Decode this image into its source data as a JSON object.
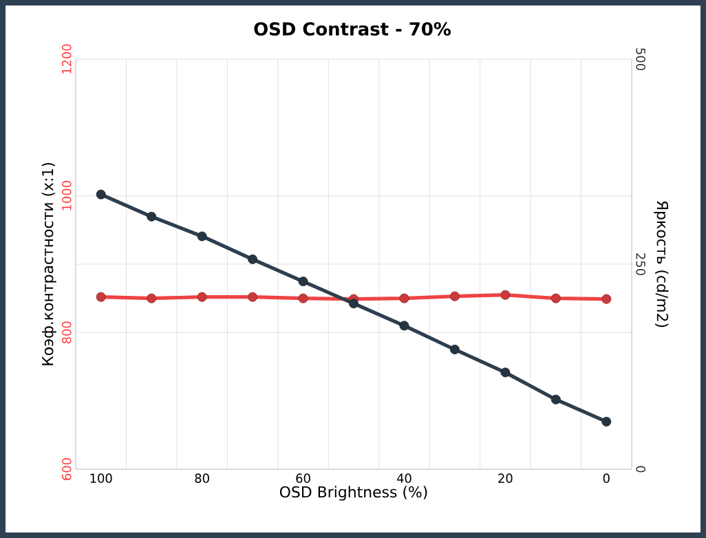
{
  "chart_data": {
    "type": "line",
    "title": "OSD Contrast - 70%",
    "xlabel": "OSD Brightness (%)",
    "ylabel": "Коэф.контрастности  (x:1)",
    "y2label": "Яркость (cd/m2)",
    "categories": [
      "100",
      null,
      "80",
      null,
      "60",
      null,
      "40",
      null,
      "20",
      null,
      "0"
    ],
    "series": [
      {
        "color": "#ee4444",
        "values": [
          852,
          850,
          852,
          852,
          850,
          849,
          850,
          853,
          855,
          850,
          849
        ]
      },
      {
        "color": "#2e3e4e",
        "axis": "y2",
        "values": [
          335,
          308,
          284,
          256,
          229,
          202,
          175,
          146,
          118,
          85,
          58
        ]
      }
    ],
    "ylim": [
      600,
      1200
    ],
    "yticks": [
      600,
      800,
      {
        "value": 900,
        "label": null
      },
      1000,
      1200
    ],
    "y2lim": [
      0,
      500
    ],
    "y2ticks": [
      0,
      250,
      500
    ],
    "grid": true,
    "marker": "circle",
    "line_style": "solid"
  }
}
